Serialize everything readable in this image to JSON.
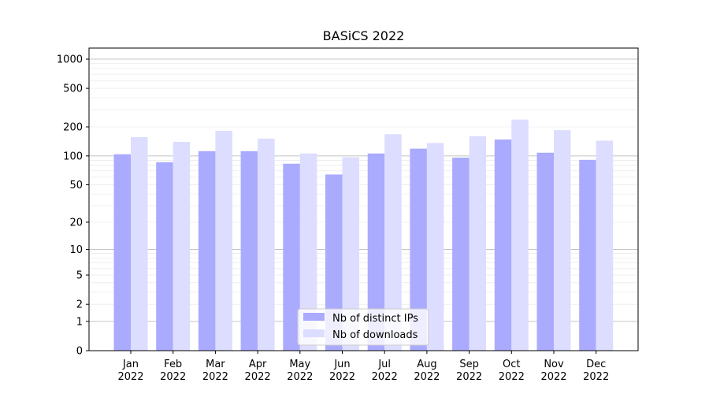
{
  "chart_data": {
    "type": "bar",
    "title": "BASiCS 2022",
    "xlabel": "",
    "ylabel": "",
    "y_scale": "symlog",
    "ylim": [
      0,
      1300
    ],
    "y_ticks": [
      0,
      1,
      2,
      5,
      10,
      20,
      50,
      100,
      200,
      500,
      1000
    ],
    "y_tick_labels": [
      "0",
      "1",
      "2",
      "5",
      "10",
      "20",
      "50",
      "100",
      "200",
      "500",
      "1000"
    ],
    "grid": true,
    "legend_position": "lower-center",
    "categories": [
      [
        "Jan",
        "2022"
      ],
      [
        "Feb",
        "2022"
      ],
      [
        "Mar",
        "2022"
      ],
      [
        "Apr",
        "2022"
      ],
      [
        "May",
        "2022"
      ],
      [
        "Jun",
        "2022"
      ],
      [
        "Jul",
        "2022"
      ],
      [
        "Aug",
        "2022"
      ],
      [
        "Sep",
        "2022"
      ],
      [
        "Oct",
        "2022"
      ],
      [
        "Nov",
        "2022"
      ],
      [
        "Dec",
        "2022"
      ]
    ],
    "series": [
      {
        "name": "Nb of distinct IPs",
        "color": "#aaaaff",
        "values": [
          104,
          86,
          112,
          112,
          83,
          64,
          106,
          119,
          96,
          148,
          108,
          91
        ]
      },
      {
        "name": "Nb of downloads",
        "color": "#ddddff",
        "values": [
          157,
          140,
          182,
          151,
          106,
          97,
          168,
          136,
          160,
          238,
          185,
          144
        ]
      }
    ]
  }
}
